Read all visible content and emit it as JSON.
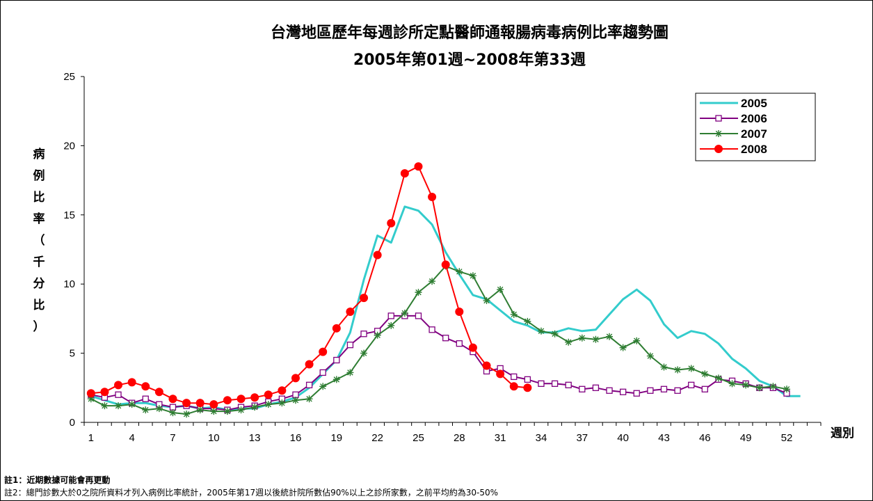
{
  "chart_data": {
    "type": "line",
    "title": "台灣地區歷年每週診所定點醫師通報腸病毒病例比率趨勢圖",
    "subtitle": "2005年第01週~2008年第33週",
    "xlabel": "週別",
    "ylabel": "病例比率（千分比）",
    "ylim": [
      0,
      25
    ],
    "yticks": [
      "0",
      "5",
      "10",
      "15",
      "20",
      "25"
    ],
    "xticks": [
      "1",
      "4",
      "7",
      "10",
      "13",
      "16",
      "19",
      "22",
      "25",
      "28",
      "31",
      "34",
      "37",
      "40",
      "43",
      "46",
      "49",
      "52"
    ],
    "legend_position": "top-right",
    "series": [
      {
        "name": "2005",
        "color": "#33CCCC",
        "marker": "none",
        "values": [
          1.9,
          1.6,
          1.3,
          1.4,
          1.4,
          1.2,
          1.1,
          1.2,
          1.0,
          1.1,
          0.9,
          1.0,
          1.0,
          1.3,
          1.5,
          1.8,
          2.5,
          3.5,
          4.5,
          6.5,
          10.3,
          13.5,
          13.0,
          15.6,
          15.3,
          14.3,
          12.3,
          10.7,
          9.2,
          8.9,
          8.1,
          7.3,
          7.0,
          6.5,
          6.5,
          6.8,
          6.6,
          6.7,
          7.8,
          8.9,
          9.6,
          8.8,
          7.1,
          6.1,
          6.6,
          6.4,
          5.7,
          4.6,
          3.9,
          3.0,
          2.6,
          1.9,
          1.9
        ]
      },
      {
        "name": "2006",
        "color": "#800080",
        "marker": "square",
        "values": [
          2.0,
          1.8,
          2.0,
          1.4,
          1.7,
          1.3,
          1.1,
          1.2,
          1.0,
          1.0,
          0.9,
          1.1,
          1.2,
          1.5,
          1.7,
          2.0,
          2.7,
          3.6,
          4.5,
          5.6,
          6.4,
          6.6,
          7.7,
          7.7,
          7.7,
          6.7,
          6.1,
          5.7,
          5.1,
          3.7,
          3.9,
          3.3,
          3.1,
          2.8,
          2.8,
          2.7,
          2.4,
          2.5,
          2.3,
          2.2,
          2.1,
          2.3,
          2.4,
          2.3,
          2.7,
          2.4,
          3.1,
          3.0,
          2.8,
          2.5,
          2.5,
          2.1
        ]
      },
      {
        "name": "2007",
        "color": "#2E7D32",
        "marker": "star",
        "values": [
          1.7,
          1.2,
          1.2,
          1.3,
          0.9,
          1.0,
          0.7,
          0.6,
          0.9,
          0.8,
          0.8,
          0.9,
          1.1,
          1.3,
          1.4,
          1.6,
          1.7,
          2.6,
          3.1,
          3.6,
          5.0,
          6.3,
          7.0,
          7.9,
          9.4,
          10.2,
          11.3,
          10.9,
          10.6,
          8.8,
          9.6,
          7.8,
          7.3,
          6.6,
          6.4,
          5.8,
          6.1,
          6.0,
          6.2,
          5.4,
          5.9,
          4.8,
          4.0,
          3.8,
          3.9,
          3.5,
          3.2,
          2.8,
          2.7,
          2.5,
          2.6,
          2.4
        ]
      },
      {
        "name": "2008",
        "color": "#FF0000",
        "marker": "circle",
        "values": [
          2.1,
          2.2,
          2.7,
          2.9,
          2.6,
          2.2,
          1.7,
          1.4,
          1.4,
          1.3,
          1.6,
          1.7,
          1.8,
          2.0,
          2.3,
          3.2,
          4.2,
          5.1,
          6.8,
          8.0,
          9.0,
          12.1,
          14.4,
          18.0,
          18.5,
          16.3,
          11.4,
          8.0,
          5.4,
          4.1,
          3.5,
          2.6,
          2.5
        ]
      }
    ]
  },
  "notes": [
    "註1：近期數據可能會再更動",
    "註2：總門診數大於0之院所資料才列入病例比率統計，2005年第17週以後統計院所數佔90%以上之診所家數，之前平均約為30-50%"
  ]
}
